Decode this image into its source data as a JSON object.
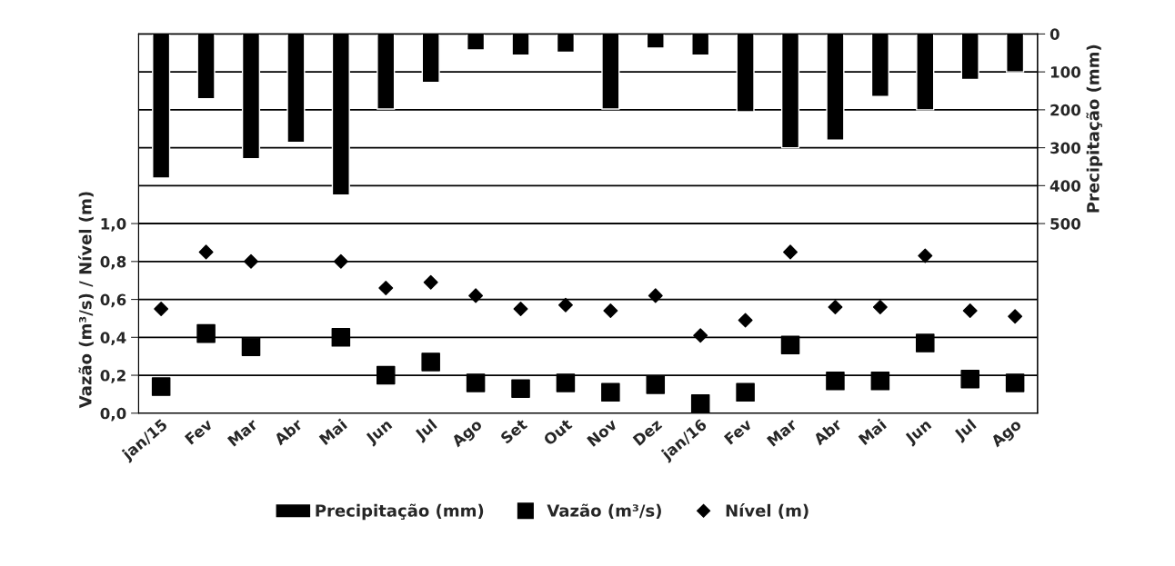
{
  "chart_data": {
    "type": "bar",
    "categories": [
      "jan/15",
      "Fev",
      "Mar",
      "Abr",
      "Mai",
      "Jun",
      "Jul",
      "Ago",
      "Set",
      "Out",
      "Nov",
      "Dez",
      "jan/16",
      "Fev",
      "Mar",
      "Abr",
      "Mai",
      "Jun",
      "Jul",
      "Ago"
    ],
    "series": [
      {
        "name": "Precipitação (mm)",
        "axis": "y2",
        "color": "#000000",
        "values": [
          380,
          171,
          329,
          286,
          425,
          198,
          128,
          42,
          56,
          48,
          198,
          37,
          56,
          205,
          300,
          280,
          165,
          200,
          120,
          100
        ]
      },
      {
        "name": "Vazão (m³/s)",
        "type": "scatter",
        "marker": "square",
        "color": "#000000",
        "values": [
          0.14,
          0.42,
          0.35,
          null,
          0.4,
          0.2,
          0.27,
          0.16,
          0.13,
          0.16,
          0.11,
          0.15,
          0.05,
          0.11,
          0.36,
          0.17,
          0.17,
          0.37,
          0.18,
          0.16
        ]
      },
      {
        "name": "Nível (m)",
        "type": "scatter",
        "marker": "diamond",
        "color": "#000000",
        "values": [
          0.55,
          0.85,
          0.8,
          null,
          0.8,
          0.66,
          0.69,
          0.62,
          0.55,
          0.57,
          0.54,
          0.62,
          0.41,
          0.49,
          0.85,
          0.56,
          0.56,
          0.83,
          0.54,
          0.51
        ]
      }
    ],
    "ylabel": "Vazão (m³/s) / Nível (m)",
    "y2label": "Precipitação (mm)",
    "ylim": [
      0,
      2.0
    ],
    "yticks": [
      {
        "value": 0,
        "label": "0,0"
      },
      {
        "value": 0.2,
        "label": "0,2"
      },
      {
        "value": 0.4,
        "label": "0,4"
      },
      {
        "value": 0.6,
        "label": "0,6"
      },
      {
        "value": 0.8,
        "label": "0,8"
      },
      {
        "value": 1.0,
        "label": "1,0"
      }
    ],
    "y2lim": [
      1000,
      0
    ],
    "y2ticks": [
      0,
      100,
      200,
      300,
      400,
      500
    ],
    "grid": "y",
    "legend": "bottom"
  }
}
